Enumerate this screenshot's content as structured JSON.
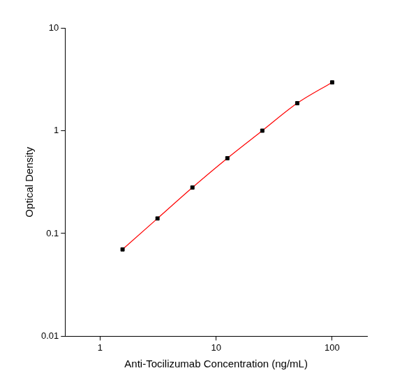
{
  "chart_data": {
    "type": "scatter",
    "x_label": "Anti-Tocilizumab Concentration (ng/mL)",
    "y_label": "Optical Density",
    "x": [
      1.5625,
      3.125,
      6.25,
      12.5,
      25,
      50,
      100
    ],
    "series": [
      {
        "type": "line",
        "color": "#ff0000",
        "line_style": "solid",
        "values": [
          0.07,
          0.14,
          0.28,
          0.54,
          1.0,
          1.85,
          2.95
        ]
      },
      {
        "type": "scatter",
        "color": "#000000",
        "marker": "square",
        "values": [
          0.07,
          0.14,
          0.28,
          0.54,
          1.0,
          1.85,
          2.95
        ]
      }
    ],
    "log": true,
    "xlim": [
      0.5,
      200
    ],
    "xticks": [
      1,
      10,
      100
    ],
    "ylim": [
      0.01,
      10
    ],
    "yticks": [
      0.01,
      0.1,
      1,
      10
    ],
    "grid": false,
    "tick_labels": true
  }
}
